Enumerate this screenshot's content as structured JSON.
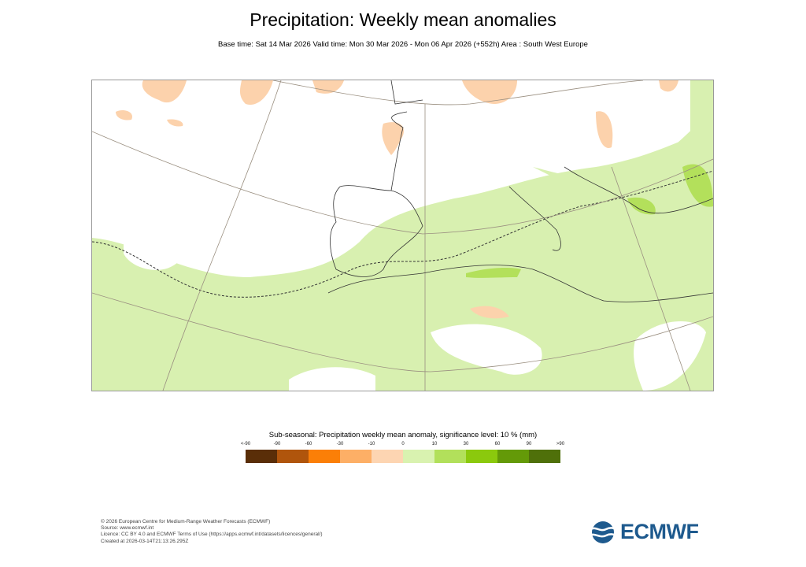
{
  "title": "Precipitation: Weekly mean anomalies",
  "subtitle": "Base time: Sat 14 Mar 2026 Valid time: Mon 30 Mar 2026 - Mon 06 Apr 2026 (+552h) Area : South West Europe",
  "map": {
    "area": "South West Europe",
    "colors": {
      "land_white": "#ffffff",
      "positive_light": "#d8f0b0",
      "negative_light": "#fcd2ac",
      "positive_mid": "#b3e05b"
    }
  },
  "legend": {
    "title": "Sub-seasonal: Precipitation weekly mean anomaly, significance level: 10 % (mm)",
    "labels": [
      "<-90",
      "-90",
      "-60",
      "-30",
      "-10",
      "0",
      "10",
      "30",
      "60",
      "90",
      ">90"
    ],
    "colors": [
      "#5a2e08",
      "#b0550c",
      "#fb7f07",
      "#fdaf66",
      "#fdd5b2",
      "#d9f2b0",
      "#b2e05b",
      "#8bc90d",
      "#649a08",
      "#4f700a"
    ]
  },
  "footer": {
    "lines": [
      "© 2026 European Centre for Medium-Range Weather Forecasts (ECMWF)",
      "Source: www.ecmwf.int",
      "Licence: CC BY 4.0 and ECMWF Terms of Use (https://apps.ecmwf.int/datasets/licences/general/)",
      "Created at 2026-03-14T21:13:26.295Z"
    ]
  },
  "logo": {
    "text": "ECMWF",
    "color": "#1e5a8e"
  }
}
